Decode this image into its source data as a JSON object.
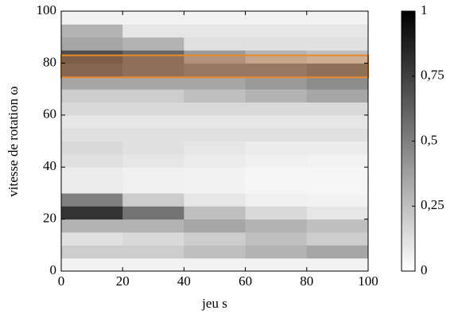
{
  "chart_data": {
    "type": "heatmap",
    "xlabel": "jeu s",
    "ylabel": "vitesse de rotation ω",
    "xbins": [
      0,
      20,
      40,
      60,
      80,
      100
    ],
    "ybins": [
      0,
      5,
      10,
      15,
      20,
      25,
      30,
      35,
      40,
      45,
      50,
      55,
      60,
      65,
      70,
      75,
      80,
      85,
      90,
      95,
      100
    ],
    "z": [
      [
        0.05,
        0.05,
        0.05,
        0.05,
        0.05
      ],
      [
        0.2,
        0.2,
        0.25,
        0.3,
        0.35
      ],
      [
        0.12,
        0.15,
        0.2,
        0.25,
        0.2
      ],
      [
        0.3,
        0.3,
        0.35,
        0.3,
        0.25
      ],
      [
        0.8,
        0.55,
        0.25,
        0.15,
        0.1
      ],
      [
        0.5,
        0.2,
        0.1,
        0.06,
        0.05
      ],
      [
        0.08,
        0.06,
        0.05,
        0.04,
        0.04
      ],
      [
        0.08,
        0.06,
        0.05,
        0.04,
        0.04
      ],
      [
        0.12,
        0.1,
        0.08,
        0.06,
        0.05
      ],
      [
        0.15,
        0.12,
        0.1,
        0.08,
        0.08
      ],
      [
        0.12,
        0.12,
        0.12,
        0.12,
        0.12
      ],
      [
        0.1,
        0.1,
        0.1,
        0.1,
        0.1
      ],
      [
        0.15,
        0.15,
        0.15,
        0.15,
        0.15
      ],
      [
        0.2,
        0.2,
        0.25,
        0.3,
        0.35
      ],
      [
        0.35,
        0.35,
        0.35,
        0.4,
        0.45
      ],
      [
        0.65,
        0.6,
        0.55,
        0.55,
        0.6
      ],
      [
        0.7,
        0.6,
        0.4,
        0.3,
        0.25
      ],
      [
        0.35,
        0.3,
        0.12,
        0.12,
        0.12
      ],
      [
        0.3,
        0.1,
        0.1,
        0.1,
        0.1
      ],
      [
        0.05,
        0.05,
        0.05,
        0.05,
        0.05
      ]
    ],
    "xlim": [
      0,
      100
    ],
    "ylim": [
      0,
      100
    ],
    "xticks": [
      0,
      20,
      40,
      60,
      80,
      100
    ],
    "yticks": [
      0,
      20,
      40,
      60,
      80,
      100
    ],
    "clim": [
      0,
      1
    ],
    "cticks": [
      0,
      {
        "value": 0.25,
        "label": "0,25"
      },
      {
        "value": 0.5,
        "label": "0,5"
      },
      {
        "value": 0.75,
        "label": "0,75"
      },
      1
    ],
    "highlight": {
      "ylim": [
        74.5,
        83
      ],
      "color": "#e8892f"
    }
  }
}
